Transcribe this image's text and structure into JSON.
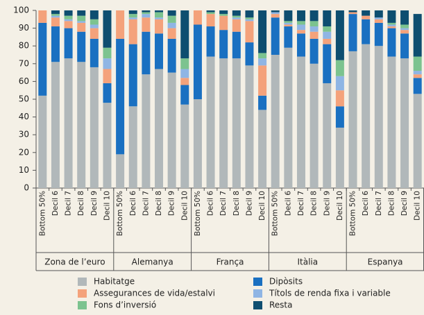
{
  "chart_data": {
    "type": "stacked_bar",
    "categories": [
      "Bottom 50%",
      "Decil 6",
      "Decil 7",
      "Decil 8",
      "Decil 9",
      "Decil 10",
      "Bottom 50%",
      "Decil 6",
      "Decil 7",
      "Decil 8",
      "Decil 9",
      "Decil 10",
      "Bottom 50%",
      "Decil 6",
      "Decil 7",
      "Decil 8",
      "Decil 9",
      "Decil 10",
      "Bottom 50%",
      "Decil 6",
      "Decil 7",
      "Decil 8",
      "Decil 9",
      "Decil 10",
      "Bottom 50%",
      "Decil 6",
      "Decil 7",
      "Decil 8",
      "Decil 9",
      "Decil 10"
    ],
    "groups": [
      "Zona de l’euro",
      "Alemanya",
      "França",
      "Itàlia",
      "Espanya"
    ],
    "ylim": [
      0,
      100
    ],
    "yticks": [
      0,
      10,
      20,
      30,
      40,
      50,
      60,
      70,
      80,
      90,
      100
    ],
    "series": [
      {
        "name": "Habitatge",
        "color": "#b1b8ba",
        "values": [
          52,
          71,
          73,
          71,
          68,
          48,
          19,
          46,
          64,
          67,
          65,
          47,
          50,
          74,
          73,
          73,
          69,
          44,
          75,
          79,
          74,
          70,
          59,
          34,
          77,
          81,
          80,
          74,
          73,
          53
        ]
      },
      {
        "name": "Dipòsits",
        "color": "#1a70c1",
        "values": [
          41,
          20,
          17,
          17,
          16,
          11,
          65,
          35,
          24,
          20,
          19,
          11,
          42,
          17,
          16,
          15,
          13,
          8,
          21,
          12,
          13,
          14,
          22,
          12,
          21,
          14,
          13,
          16,
          14,
          9
        ]
      },
      {
        "name": "Assegurances de vida/estalvi",
        "color": "#f4a27b",
        "values": [
          7,
          5,
          4,
          5,
          6,
          8,
          16,
          14,
          8,
          8,
          6,
          4,
          8,
          7,
          8,
          7,
          12,
          17,
          2,
          1,
          2,
          4,
          3,
          9,
          1,
          2,
          2,
          1,
          2,
          2
        ]
      },
      {
        "name": "Títols de renda fixa i variable",
        "color": "#8fb5e4",
        "values": [
          0,
          1,
          1,
          1,
          2,
          6,
          0,
          1,
          2,
          1,
          3,
          5,
          0,
          0,
          0,
          1,
          1,
          4,
          1,
          1,
          3,
          3,
          4,
          8,
          0,
          0,
          1,
          1,
          1,
          2
        ]
      },
      {
        "name": "Fons d’inversió",
        "color": "#7cc38f",
        "values": [
          0,
          1,
          2,
          3,
          3,
          6,
          0,
          2,
          1,
          3,
          4,
          6,
          0,
          1,
          1,
          1,
          1,
          3,
          0,
          1,
          2,
          3,
          3,
          9,
          0,
          0,
          0,
          1,
          2,
          8
        ]
      },
      {
        "name": "Resta",
        "color": "#0e4e70",
        "values": [
          0,
          2,
          3,
          3,
          5,
          21,
          0,
          2,
          1,
          1,
          3,
          27,
          0,
          1,
          2,
          3,
          4,
          24,
          1,
          6,
          6,
          6,
          9,
          28,
          1,
          3,
          4,
          7,
          8,
          24
        ]
      }
    ]
  }
}
